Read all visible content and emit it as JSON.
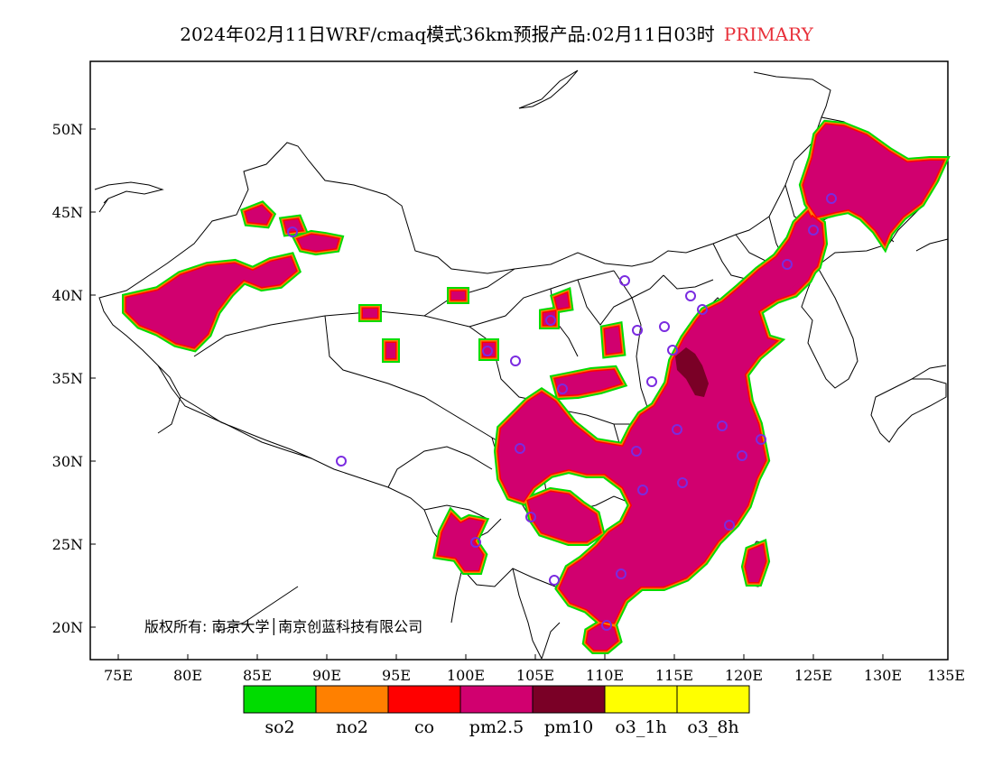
{
  "title": {
    "text": "2024年02月11日WRF/cmaq模式36km预报产品:02月11日03时",
    "tag": "PRIMARY",
    "tag_color": "#e8303a"
  },
  "axes": {
    "lat_labels": [
      "50N",
      "45N",
      "40N",
      "35N",
      "30N",
      "25N",
      "20N"
    ],
    "lon_labels": [
      "75E",
      "80E",
      "85E",
      "90E",
      "95E",
      "100E",
      "105E",
      "110E",
      "115E",
      "120E",
      "125E",
      "130E",
      "135E"
    ]
  },
  "copyright": "版权所有: 南京大学│南京创蓝科技有限公司",
  "legend": [
    {
      "label": "so2",
      "color": "#00dc00"
    },
    {
      "label": "no2",
      "color": "#ff8000"
    },
    {
      "label": "co",
      "color": "#ff0000"
    },
    {
      "label": "pm2.5",
      "color": "#d1006f"
    },
    {
      "label": "pm10",
      "color": "#7a0026"
    },
    {
      "label": "o3_1h",
      "color": "#ffff00"
    },
    {
      "label": "o3_8h",
      "color": "#ffff00"
    }
  ]
}
